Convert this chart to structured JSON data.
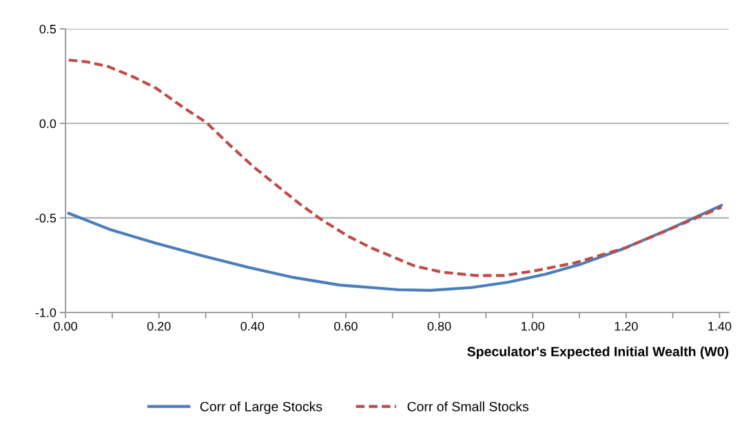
{
  "chart_data": {
    "type": "line",
    "xlabel": "Speculator's Expected Initial Wealth (W0)",
    "xlim": [
      0,
      1.42
    ],
    "xticks": [
      {
        "value": 0,
        "label": "0.00"
      },
      {
        "value": 0.1,
        "label": null
      },
      {
        "value": 0.2,
        "label": "0.20"
      },
      {
        "value": 0.3,
        "label": null
      },
      {
        "value": 0.4,
        "label": "0.40"
      },
      {
        "value": 0.5,
        "label": null
      },
      {
        "value": 0.6,
        "label": "0.60"
      },
      {
        "value": 0.7,
        "label": null
      },
      {
        "value": 0.8,
        "label": "0.80"
      },
      {
        "value": 0.9,
        "label": null
      },
      {
        "value": 1.0,
        "label": "1.00"
      },
      {
        "value": 1.1,
        "label": null
      },
      {
        "value": 1.2,
        "label": "1.20"
      },
      {
        "value": 1.3,
        "label": null
      },
      {
        "value": 1.4,
        "label": "1.40"
      }
    ],
    "ylim": [
      -1.0,
      0.5
    ],
    "yticks": [
      {
        "value": -1.0,
        "label": "-1.0"
      },
      {
        "value": -0.5,
        "label": "-0.5"
      },
      {
        "value": 0.0,
        "label": "0.0"
      },
      {
        "value": 0.5,
        "label": "0.5"
      }
    ],
    "grid": "y",
    "legend": "bottom",
    "marker": "none",
    "series": [
      {
        "name": "Corr of Large Stocks",
        "color": "#4a7ebb",
        "line_style": "solid",
        "x": [
          0.007,
          0.095,
          0.194,
          0.292,
          0.39,
          0.488,
          0.586,
          0.713,
          0.782,
          0.87,
          0.948,
          1.027,
          1.105,
          1.193,
          1.291,
          1.404
        ],
        "values": [
          -0.476,
          -0.561,
          -0.634,
          -0.7,
          -0.761,
          -0.815,
          -0.855,
          -0.88,
          -0.883,
          -0.868,
          -0.84,
          -0.798,
          -0.743,
          -0.664,
          -0.561,
          -0.434
        ]
      },
      {
        "name": "Corr of Small Stocks",
        "color": "#be4b48",
        "line_style": "dashed",
        "x": [
          0.007,
          0.047,
          0.091,
          0.145,
          0.194,
          0.253,
          0.302,
          0.35,
          0.404,
          0.453,
          0.502,
          0.546,
          0.605,
          0.654,
          0.713,
          0.747,
          0.806,
          0.88,
          0.939,
          1.002,
          1.09,
          1.198,
          1.291,
          1.404
        ],
        "values": [
          0.335,
          0.325,
          0.301,
          0.246,
          0.186,
          0.083,
          0.004,
          -0.111,
          -0.233,
          -0.33,
          -0.427,
          -0.506,
          -0.597,
          -0.658,
          -0.719,
          -0.754,
          -0.787,
          -0.805,
          -0.805,
          -0.781,
          -0.738,
          -0.659,
          -0.562,
          -0.443
        ]
      }
    ]
  }
}
